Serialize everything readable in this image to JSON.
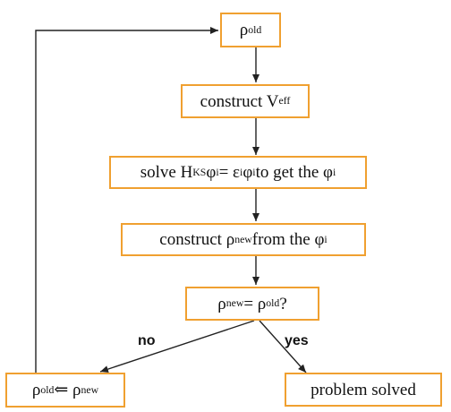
{
  "nodes": {
    "rho_old": {
      "symbol": "ρ",
      "sub": "old"
    },
    "construct_veff": {
      "text": "construct V",
      "sub": "eff"
    },
    "solve": {
      "t1": "solve H",
      "s1": "KS",
      "t2": " φ",
      "s2": "i",
      "t3": "= ε",
      "s3": "i",
      "t4": " φ",
      "s4": "i",
      "t5": " to get the φ",
      "s5": "i"
    },
    "construct_rho_new": {
      "t1": "construct ρ",
      "s1": "new",
      "t2": " from the φ",
      "s2": "i"
    },
    "check": {
      "t1": "ρ",
      "s1": "new",
      "t2": " = ρ",
      "s2": "old",
      "t3": " ?"
    },
    "update": {
      "t1": "ρ",
      "s1": "old",
      "t2": " ⇐ ρ",
      "s2": "new"
    },
    "done": {
      "text": "problem solved"
    }
  },
  "edges": {
    "no_label": "no",
    "yes_label": "yes"
  },
  "colors": {
    "box_border": "#f0a030",
    "arrow": "#222222",
    "text": "#111111"
  }
}
